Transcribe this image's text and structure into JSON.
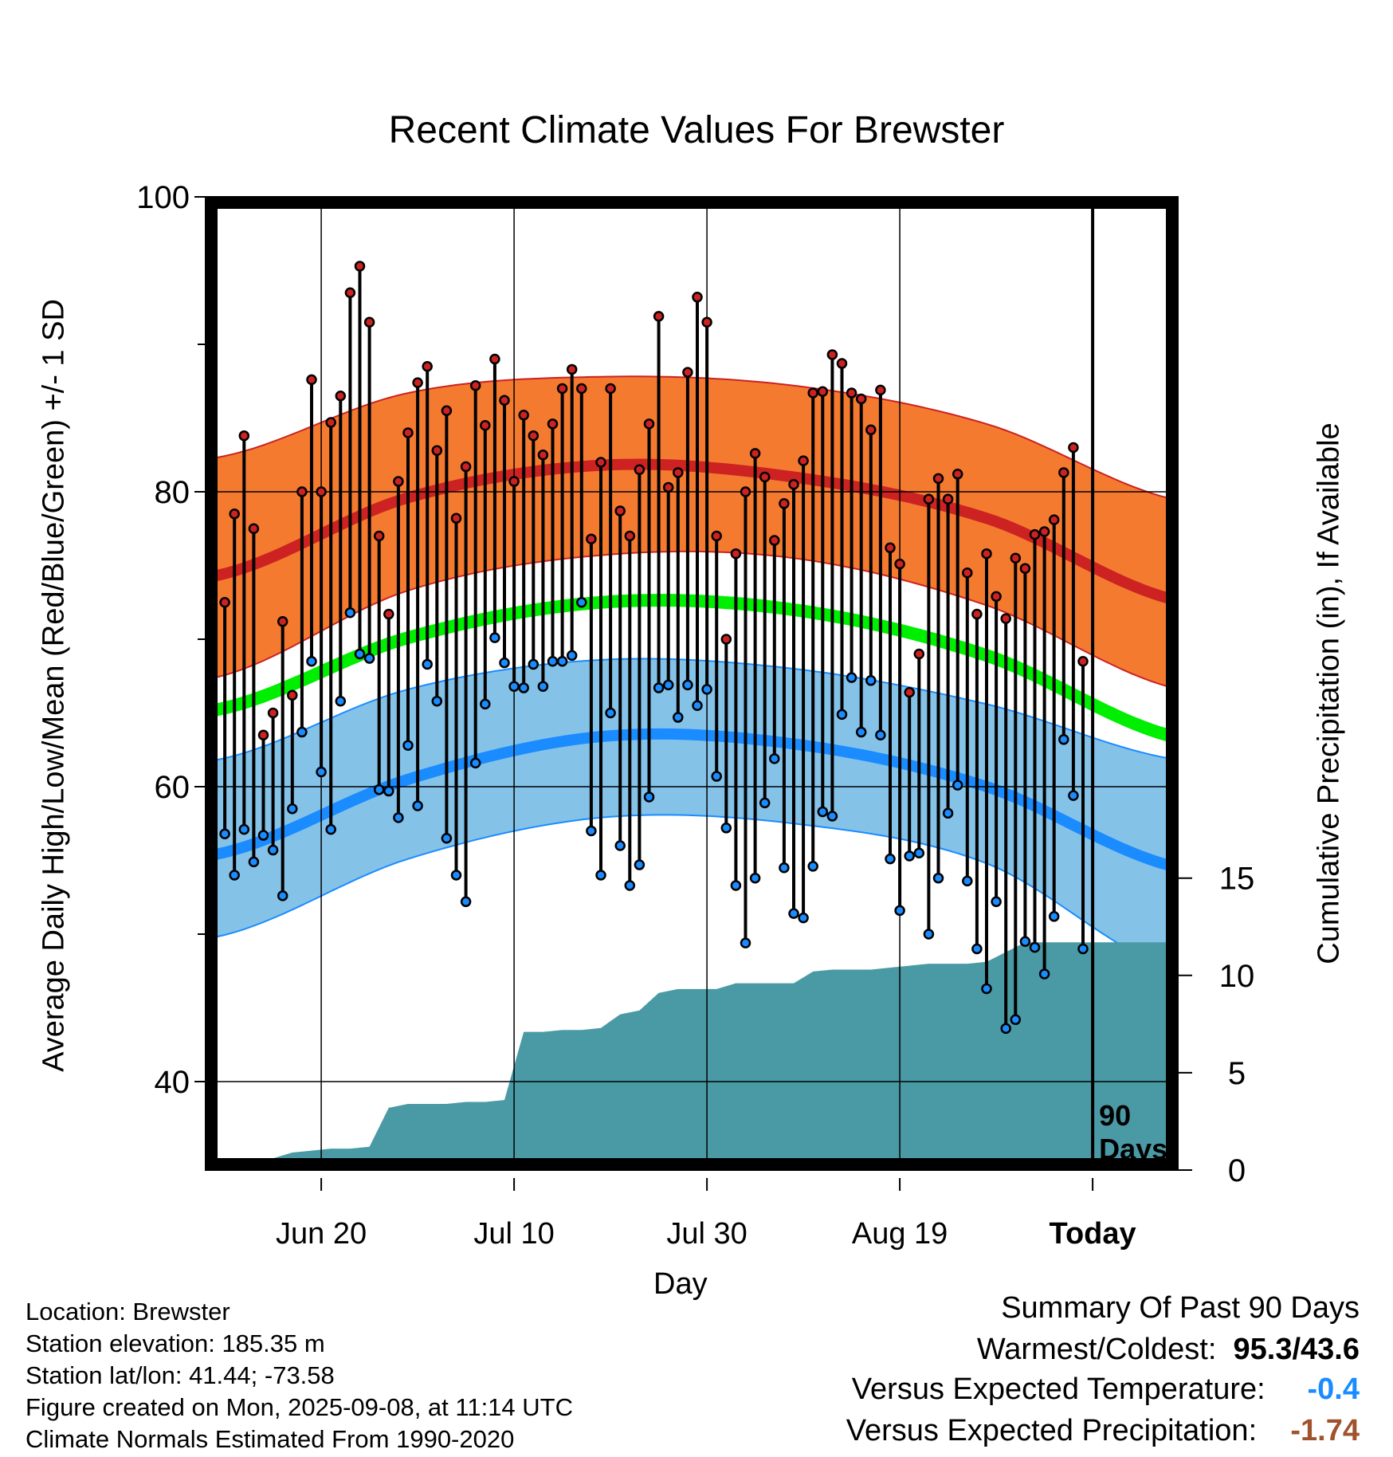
{
  "chart_data": {
    "type": "line",
    "title": "Recent Climate Values For Brewster",
    "xlabel": "Day",
    "ylabel_left": "Average Daily High/Low/Mean (Red/Blue/Green) +/- 1 SD",
    "ylabel_right": "Cumulative Precipitation (in), If Available",
    "x_ticks": [
      "Jun 20",
      "Jul 10",
      "Jul 30",
      "Aug 19",
      "Today"
    ],
    "x_tick_days": [
      11,
      31,
      51,
      71,
      91
    ],
    "y_left_ticks": [
      40,
      60,
      80,
      100
    ],
    "y_left_range": [
      34,
      100
    ],
    "y_right_ticks": [
      0,
      5,
      10,
      15
    ],
    "y_right_range": [
      0,
      50
    ],
    "today_marker_label": "90 Days",
    "grid": true,
    "normals": {
      "days": [
        0,
        20,
        40,
        60,
        80,
        100
      ],
      "high_mean": [
        74.3,
        79.6,
        81.8,
        81.0,
        78.2,
        72.6
      ],
      "high_plus_sd": [
        82.3,
        86.7,
        87.8,
        87.2,
        84.6,
        79.4
      ],
      "high_minus_sd": [
        67.4,
        73.3,
        75.7,
        75.5,
        72.3,
        66.6
      ],
      "low_mean": [
        55.4,
        60.5,
        63.4,
        62.9,
        60.0,
        54.5
      ],
      "low_plus_sd": [
        61.8,
        66.6,
        68.6,
        68.0,
        65.6,
        61.8
      ],
      "low_minus_sd": [
        49.8,
        55.1,
        57.9,
        57.5,
        54.8,
        47.4
      ],
      "mean_mean": [
        65.2,
        70.1,
        72.5,
        72.0,
        68.9,
        63.3
      ]
    },
    "series": [
      {
        "name": "High",
        "values": [
          72.5,
          78.5,
          83.8,
          77.5,
          63.5,
          65.0,
          71.2,
          66.2,
          80.0,
          87.6,
          80.0,
          84.7,
          86.5,
          93.5,
          95.3,
          91.5,
          77.0,
          71.7,
          80.7,
          84.0,
          87.4,
          88.5,
          82.8,
          85.5,
          78.2,
          81.7,
          87.2,
          84.5,
          89.0,
          86.2,
          80.7,
          85.2,
          83.8,
          82.5,
          84.6,
          87.0,
          88.3,
          87.0,
          76.8,
          82.0,
          87.0,
          78.7,
          77.0,
          81.5,
          84.6,
          91.9,
          80.3,
          81.3,
          88.1,
          93.2,
          91.5,
          77.0,
          70.0,
          75.8,
          80.0,
          82.6,
          81.0,
          76.7,
          79.2,
          80.5,
          82.1,
          86.7,
          86.8,
          89.3,
          88.7,
          86.7,
          86.3,
          84.2,
          86.9,
          76.2,
          75.1,
          66.4,
          69.0,
          79.5,
          80.9,
          79.5,
          81.2,
          74.5,
          71.7,
          75.8,
          72.9,
          71.4,
          75.5,
          74.8,
          77.1,
          77.3,
          78.1,
          81.3,
          83.0,
          68.5
        ],
        "color": "#b22222"
      },
      {
        "name": "Low",
        "values": [
          56.8,
          54.0,
          57.1,
          54.9,
          56.7,
          55.7,
          52.6,
          58.5,
          63.7,
          68.5,
          61.0,
          57.1,
          65.8,
          71.8,
          69.0,
          68.7,
          59.8,
          59.7,
          57.9,
          62.8,
          58.7,
          68.3,
          65.8,
          56.5,
          54.0,
          52.2,
          61.6,
          65.6,
          70.1,
          68.4,
          66.8,
          66.7,
          68.3,
          66.8,
          68.5,
          68.5,
          68.9,
          72.5,
          57.0,
          54.0,
          65.0,
          56.0,
          53.3,
          54.7,
          59.3,
          66.7,
          66.9,
          64.7,
          66.9,
          65.5,
          66.6,
          60.7,
          57.2,
          53.3,
          49.4,
          53.8,
          58.9,
          61.9,
          54.5,
          51.4,
          51.1,
          54.6,
          58.3,
          58.0,
          64.9,
          67.4,
          63.7,
          67.2,
          63.5,
          55.1,
          51.6,
          55.3,
          55.5,
          50.0,
          53.8,
          58.2,
          60.1,
          53.6,
          49.0,
          46.3,
          52.2,
          43.6,
          44.2,
          49.5,
          49.1,
          47.3,
          51.2,
          63.2,
          59.4,
          49.0
        ],
        "color": "#1a8cff"
      }
    ],
    "precip_days": [
      0,
      2,
      4,
      6,
      8,
      10,
      12,
      14,
      16,
      18,
      20,
      22,
      24,
      26,
      28,
      30,
      32,
      34,
      36,
      38,
      40,
      42,
      44,
      46,
      48,
      50,
      52,
      54,
      56,
      58,
      60,
      62,
      64,
      66,
      68,
      70,
      72,
      74,
      76,
      78,
      80,
      82,
      84,
      86,
      88,
      90,
      92,
      94,
      96,
      98,
      100
    ],
    "precip_cumulative": [
      0.0,
      0.1,
      0.3,
      0.6,
      0.9,
      1.0,
      1.1,
      1.1,
      1.2,
      3.2,
      3.4,
      3.4,
      3.4,
      3.5,
      3.5,
      3.6,
      7.1,
      7.1,
      7.2,
      7.2,
      7.3,
      8.0,
      8.2,
      9.1,
      9.3,
      9.3,
      9.3,
      9.6,
      9.6,
      9.6,
      9.6,
      10.2,
      10.3,
      10.3,
      10.3,
      10.4,
      10.5,
      10.6,
      10.6,
      10.6,
      10.7,
      11.2,
      11.7,
      11.7,
      11.7,
      11.7,
      11.7,
      11.7,
      11.7,
      11.7,
      11.7
    ]
  },
  "info": {
    "location": "Location: Brewster",
    "elevation": "Station elevation: 185.35 m",
    "latlon": "Station lat/lon: 41.44; -73.58",
    "created": "Figure created on Mon, 2025-09-08, at 11:14 UTC",
    "normals": "Climate Normals Estimated From 1990-2020"
  },
  "summary": {
    "heading": "Summary Of Past 90 Days",
    "warm_cold_label": "Warmest/Coldest:",
    "warm_cold_value": "95.3/43.6",
    "temp_label": "Versus Expected Temperature:",
    "temp_value": "-0.4",
    "precip_label": "Versus Expected Precipitation:",
    "precip_value": "-1.74"
  },
  "colors": {
    "high_band": "#f47a30",
    "high_line": "#cc2222",
    "low_band": "#85c2e8",
    "low_line": "#1a8cff",
    "mean_line": "#00ee00",
    "precip_fill": "#4a9aa5"
  }
}
